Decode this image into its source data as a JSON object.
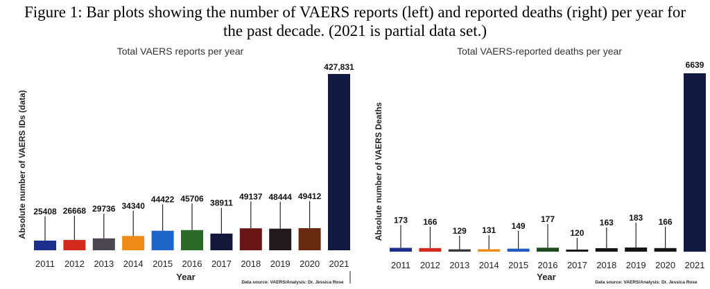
{
  "caption": {
    "line1": "Figure 1:  Bar plots showing the number of VAERS reports (left) and reported deaths (right) per year for",
    "line2": "the past decade. (2021 is partial data set.)"
  },
  "chart_data": [
    {
      "type": "bar",
      "title": "Total VAERS reports per year",
      "xlabel": "Year",
      "ylabel": "Absolute number of VAERS IDs (data)",
      "source": "Data source: VAERS/Analysis: Dr. Jessica Rose",
      "categories": [
        "2011",
        "2012",
        "2013",
        "2014",
        "2015",
        "2016",
        "2017",
        "2018",
        "2019",
        "2020",
        "2021"
      ],
      "values": [
        25408,
        26668,
        29736,
        34340,
        44422,
        45706,
        38911,
        49137,
        48444,
        49412,
        427831
      ],
      "value_labels": [
        "25408",
        "26668",
        "29736",
        "34340",
        "44422",
        "45706",
        "38911",
        "49137",
        "48444",
        "49412",
        "427,831"
      ],
      "colors": [
        "#1c2f8c",
        "#d42a1e",
        "#4c4650",
        "#ee8a16",
        "#1f64c8",
        "#2a6a26",
        "#13183a",
        "#6a1616",
        "#231a1e",
        "#6a2a12",
        "#121a42"
      ],
      "ylim": [
        0,
        427831
      ]
    },
    {
      "type": "bar",
      "title": "Total VAERS-reported deaths per year",
      "xlabel": "Year",
      "ylabel": "Absolute number of VAERS Deaths",
      "source": "Data source: VAERS/Analysis: Dr. Jessica Rose",
      "categories": [
        "2011",
        "2012",
        "2013",
        "2014",
        "2015",
        "2016",
        "2017",
        "2018",
        "2019",
        "2020",
        "2021"
      ],
      "values": [
        173,
        166,
        129,
        131,
        149,
        177,
        120,
        163,
        183,
        166,
        6639
      ],
      "value_labels": [
        "173",
        "166",
        "129",
        "131",
        "149",
        "177",
        "120",
        "163",
        "183",
        "166",
        "6639"
      ],
      "colors": [
        "#1c2f8c",
        "#d42a1e",
        "#3a3a3a",
        "#ee8a16",
        "#1f5cc0",
        "#1e4a1e",
        "#151515",
        "#151515",
        "#151515",
        "#151515",
        "#121a42"
      ],
      "ylim": [
        0,
        6639
      ]
    }
  ]
}
